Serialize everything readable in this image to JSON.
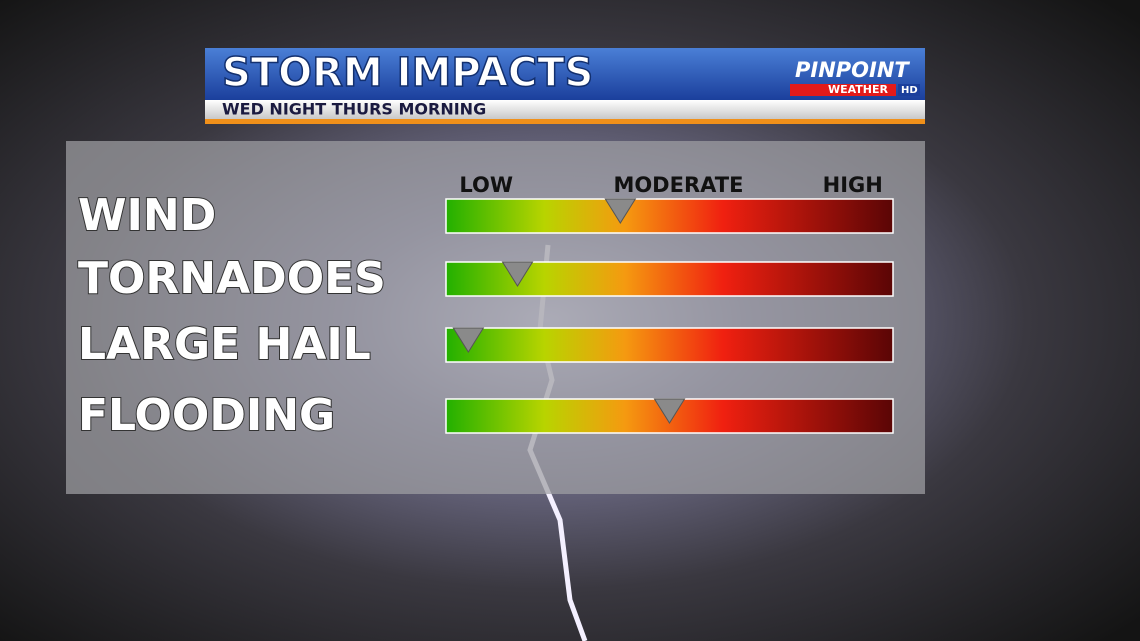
{
  "chart_data": {
    "type": "gauge",
    "title": "STORM IMPACTS",
    "subtitle": "WED NIGHT THURS MORNING",
    "categories": [
      "WIND",
      "TORNADOES",
      "LARGE HAIL",
      "FLOODING"
    ],
    "values": [
      39,
      16,
      5,
      50
    ],
    "xlim": [
      0,
      100
    ],
    "xticks": [
      {
        "value": 9,
        "label": "LOW"
      },
      {
        "value": 52,
        "label": "MODERATE"
      },
      {
        "value": 91,
        "label": "HIGH"
      }
    ],
    "marker_color": "#8a8a8a"
  },
  "logo": {
    "name": "PINPOINT",
    "sub": "WEATHER",
    "badge": "HD"
  }
}
